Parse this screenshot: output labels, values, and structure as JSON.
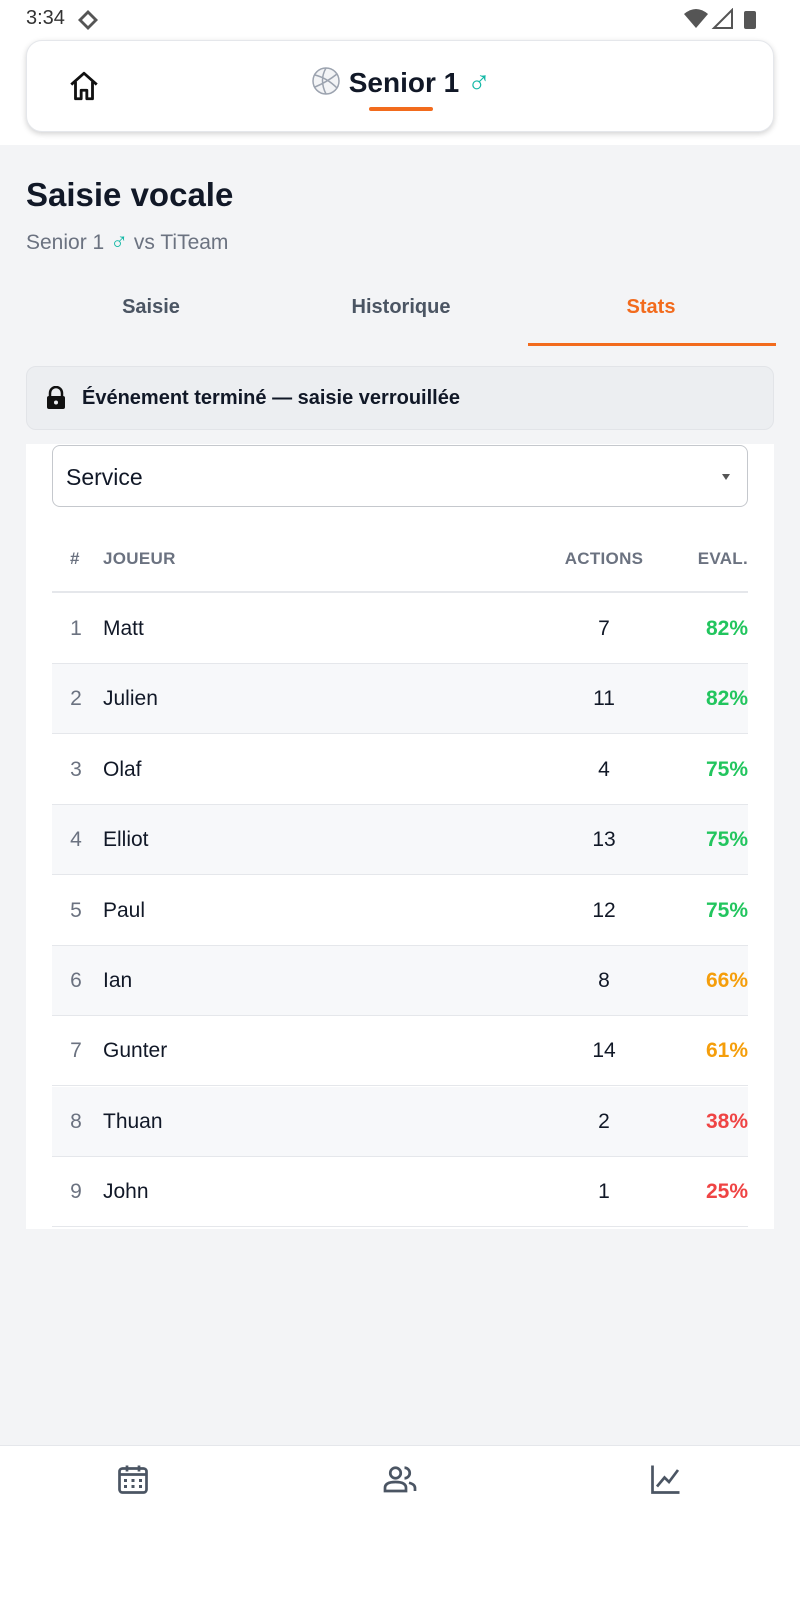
{
  "status_bar": {
    "time": "3:34"
  },
  "header": {
    "title": "Senior 1",
    "gender": "♂"
  },
  "page": {
    "title": "Saisie vocale",
    "subtitle": {
      "team": "Senior 1",
      "gender": "♂",
      "opponent": "vs TiTeam"
    }
  },
  "tabs": [
    {
      "label": "Saisie",
      "active": false
    },
    {
      "label": "Historique",
      "active": false
    },
    {
      "label": "Stats",
      "active": true
    }
  ],
  "banner": {
    "text": "Événement terminé — saisie verrouillée"
  },
  "select": {
    "value": "Service"
  },
  "table": {
    "columns": [
      "#",
      "JOUEUR",
      "ACTIONS",
      "EVAL."
    ],
    "rows": [
      {
        "rank": "1",
        "name": "Matt",
        "actions": "7",
        "eval": "82%",
        "color": "#22c55e"
      },
      {
        "rank": "2",
        "name": "Julien",
        "actions": "11",
        "eval": "82%",
        "color": "#22c55e"
      },
      {
        "rank": "3",
        "name": "Olaf",
        "actions": "4",
        "eval": "75%",
        "color": "#22c55e"
      },
      {
        "rank": "4",
        "name": "Elliot",
        "actions": "13",
        "eval": "75%",
        "color": "#22c55e"
      },
      {
        "rank": "5",
        "name": "Paul",
        "actions": "12",
        "eval": "75%",
        "color": "#22c55e"
      },
      {
        "rank": "6",
        "name": "Ian",
        "actions": "8",
        "eval": "66%",
        "color": "#f59e0b"
      },
      {
        "rank": "7",
        "name": "Gunter",
        "actions": "14",
        "eval": "61%",
        "color": "#f59e0b"
      },
      {
        "rank": "8",
        "name": "Thuan",
        "actions": "2",
        "eval": "38%",
        "color": "#ef4444"
      },
      {
        "rank": "9",
        "name": "John",
        "actions": "1",
        "eval": "25%",
        "color": "#ef4444"
      }
    ]
  }
}
